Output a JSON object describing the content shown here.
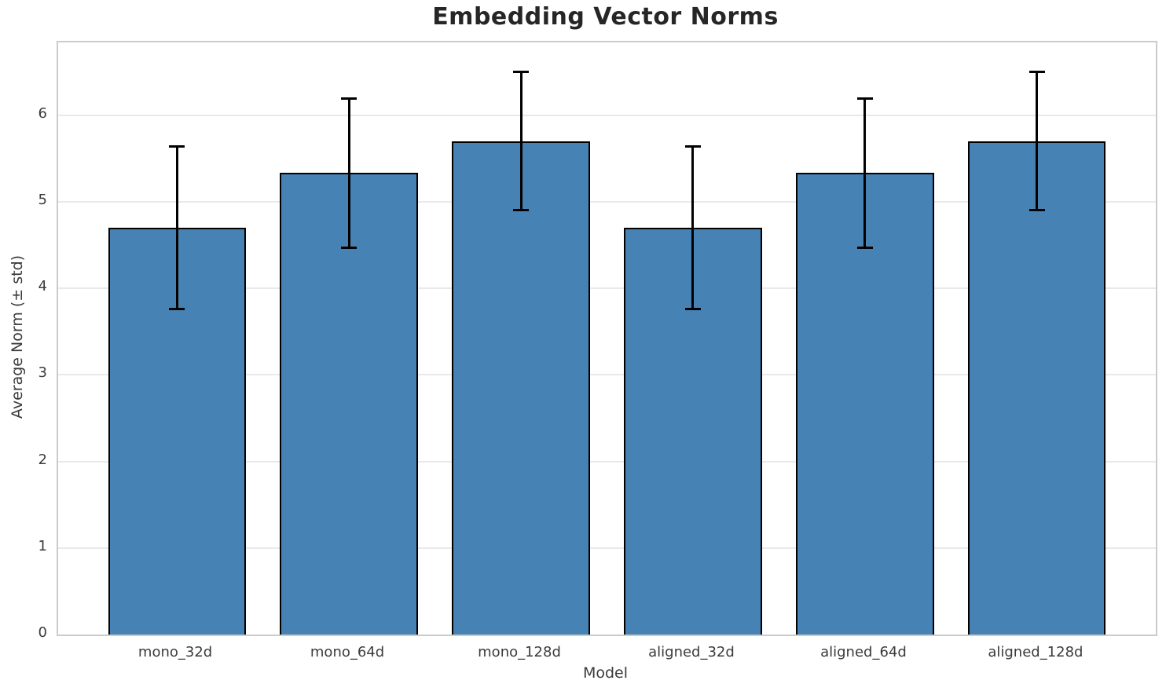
{
  "chart_data": {
    "type": "bar",
    "title": "Embedding Vector Norms",
    "xlabel": "Model",
    "ylabel": "Average Norm (± std)",
    "categories": [
      "mono_32d",
      "mono_64d",
      "mono_128d",
      "aligned_32d",
      "aligned_64d",
      "aligned_128d"
    ],
    "values": [
      4.7,
      5.33,
      5.7,
      4.7,
      5.33,
      5.7
    ],
    "errors": [
      0.94,
      0.86,
      0.8,
      0.94,
      0.86,
      0.8
    ],
    "yticks": [
      0,
      1,
      2,
      3,
      4,
      5,
      6
    ],
    "ylim": [
      0,
      6.84
    ],
    "xlim": [
      -0.69,
      5.69
    ],
    "bar_width_fraction": 0.8,
    "grid": true,
    "legend": false,
    "error_bars": true,
    "colors": {
      "bar_fill": "#4682b4",
      "bar_edge": "#000000",
      "error_bar": "#000000",
      "gridline": "#e9e9e9",
      "spine": "#cbcbcb",
      "title_text": "#262626",
      "tick_text": "#3b3b3b"
    }
  }
}
